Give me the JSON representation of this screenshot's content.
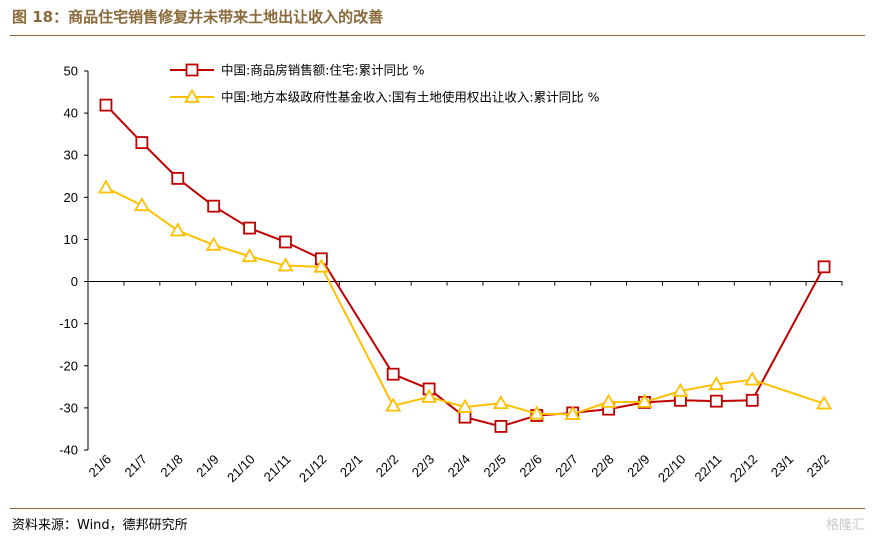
{
  "figure": {
    "title": "图 18：商品住宅销售修复并未带来土地出让收入的改善",
    "source": "资料来源：Wind，德邦研究所",
    "watermark": "格隆汇"
  },
  "colors": {
    "heading": "#8a6a3b",
    "series1": "#c00000",
    "series2": "#ffc000"
  },
  "chart_data": {
    "type": "line",
    "categories": [
      "21/6",
      "21/7",
      "21/8",
      "21/9",
      "21/10",
      "21/11",
      "21/12",
      "22/1",
      "22/2",
      "22/3",
      "22/4",
      "22/5",
      "22/6",
      "22/7",
      "22/8",
      "22/9",
      "22/10",
      "22/11",
      "22/12",
      "23/1",
      "23/2"
    ],
    "series": [
      {
        "name": "中国:商品房销售额:住宅:累计同比 %",
        "marker": "square",
        "color": "#c00000",
        "values": [
          41.9,
          33.0,
          24.5,
          17.9,
          12.7,
          9.4,
          5.4,
          null,
          -22.0,
          -25.5,
          -32.2,
          -34.4,
          -31.8,
          -31.2,
          -30.3,
          -28.7,
          -28.2,
          -28.4,
          -28.2,
          null,
          3.5
        ]
      },
      {
        "name": "中国:地方本级政府性基金收入:国有土地使用权出让收入:累计同比 %",
        "marker": "triangle",
        "color": "#ffc000",
        "values": [
          22.3,
          18.1,
          12.1,
          8.7,
          6.0,
          3.8,
          3.5,
          null,
          -29.5,
          -27.4,
          -29.8,
          -28.9,
          -31.4,
          -31.5,
          -28.6,
          -28.6,
          -26.0,
          -24.4,
          -23.3,
          null,
          -29.0
        ]
      }
    ],
    "y_ticks": [
      50,
      40,
      30,
      20,
      10,
      0,
      -10,
      -20,
      -30,
      -40
    ],
    "y_tick_labels": [
      "50",
      "40",
      "30",
      "20",
      "10",
      "0",
      "-10",
      "-20",
      "-30",
      "-40"
    ],
    "ylim": [
      -40,
      50
    ],
    "legend_position": "top",
    "grid": false
  }
}
